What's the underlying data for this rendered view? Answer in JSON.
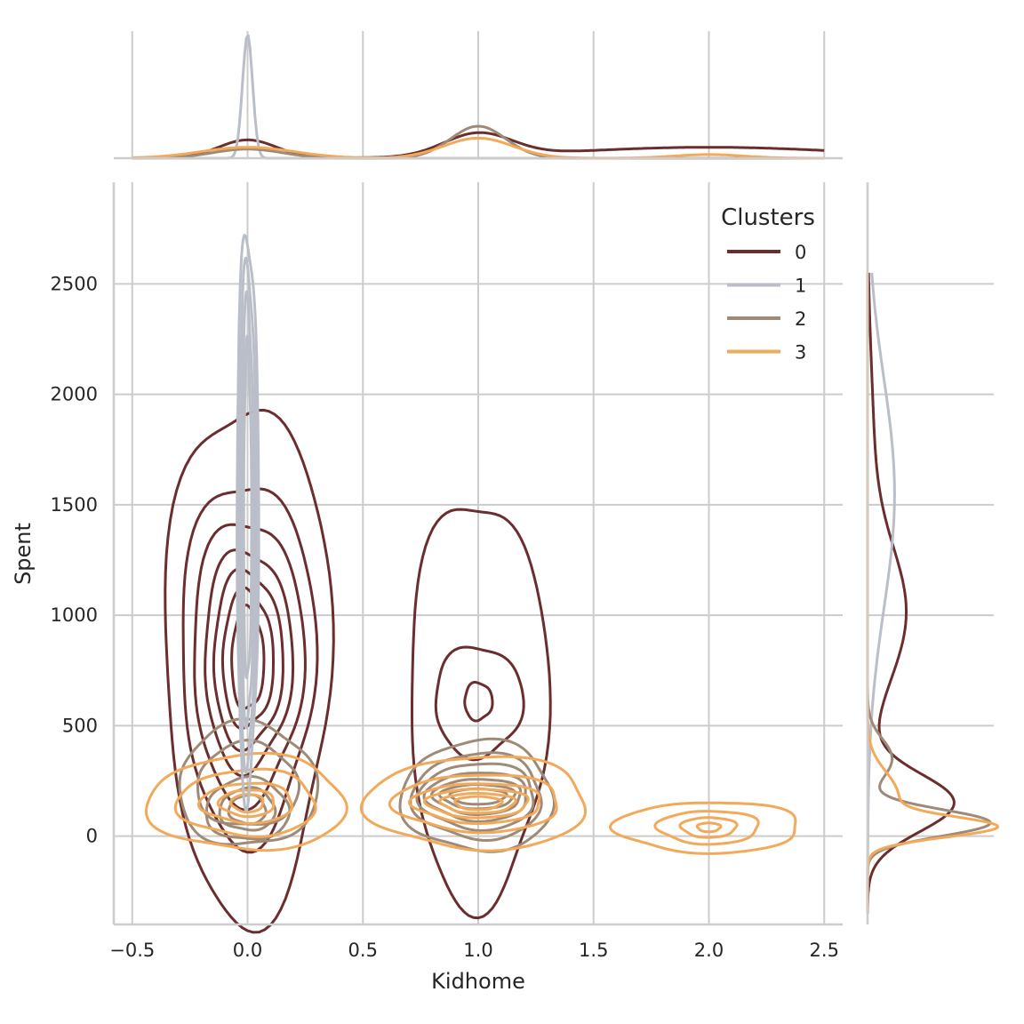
{
  "chart_data": {
    "type": "kde-jointplot",
    "xlabel": "Kidhome",
    "ylabel": "Spent",
    "xlim": [
      -0.58,
      2.58
    ],
    "ylim": [
      -400,
      2960
    ],
    "xticks": [
      -0.5,
      0.0,
      0.5,
      1.0,
      1.5,
      2.0,
      2.5
    ],
    "xtick_labels": [
      "−0.5",
      "0.0",
      "0.5",
      "1.0",
      "1.5",
      "2.0",
      "2.5"
    ],
    "yticks": [
      0,
      500,
      1000,
      1500,
      2000,
      2500
    ],
    "ytick_labels": [
      "0",
      "500",
      "1000",
      "1500",
      "2000",
      "2500"
    ],
    "grid": true,
    "legend": {
      "title": "Clusters",
      "placement": "top-right",
      "entries": [
        "0",
        "1",
        "2",
        "3"
      ]
    },
    "series": [
      {
        "name": "0",
        "color": "#6b2d2d",
        "blobs": [
          {
            "cx": 0.0,
            "cy": 800,
            "levels": [
              [
                0.36,
                1170
              ],
              [
                0.29,
                820
              ],
              [
                0.24,
                640
              ],
              [
                0.19,
                500
              ],
              [
                0.15,
                400
              ],
              [
                0.11,
                310
              ],
              [
                0.07,
                230
              ]
            ]
          },
          {
            "cx": 1.0,
            "cy": 610,
            "levels": [
              [
                0.3,
                920
              ],
              [
                0.19,
                250
              ],
              [
                0.06,
                85
              ]
            ]
          }
        ],
        "marg_x": [
          [
            0.0,
            0.125,
            0.02
          ],
          [
            1.0,
            0.148,
            0.025
          ],
          [
            2.0,
            0.6,
            0.012
          ]
        ],
        "marg_y": [
          [
            150,
            130,
            0.7
          ],
          [
            1000,
            300,
            0.3
          ],
          [
            1700,
            450,
            0.05
          ]
        ]
      },
      {
        "name": "1",
        "color": "#b9bec8",
        "blobs": [
          {
            "cx": 0.0,
            "cy": 1450,
            "levels": [
              [
                0.047,
                1270
              ],
              [
                0.037,
                1130
              ],
              [
                0.027,
                960
              ],
              [
                0.017,
                760
              ]
            ]
          }
        ],
        "marg_x": [
          [
            0.0,
            0.022,
            0.135
          ]
        ],
        "marg_y": [
          [
            1550,
            520,
            0.22
          ]
        ]
      },
      {
        "name": "2",
        "color": "#9e8a76",
        "blobs": [
          {
            "cx": 0.0,
            "cy": 230,
            "levels": [
              [
                0.3,
                280
              ],
              [
                0.22,
                190
              ]
            ]
          },
          {
            "cx": 0.0,
            "cy": 120,
            "levels": [
              [
                0.18,
                140
              ],
              [
                0.12,
                95
              ],
              [
                0.08,
                65
              ]
            ]
          },
          {
            "cx": 1.0,
            "cy": 180,
            "levels": [
              [
                0.33,
                250
              ],
              [
                0.28,
                195
              ],
              [
                0.25,
                150
              ],
              [
                0.22,
                110
              ],
              [
                0.19,
                80
              ],
              [
                0.16,
                55
              ],
              [
                0.12,
                35
              ]
            ]
          }
        ],
        "marg_x": [
          [
            0.0,
            0.15,
            0.01
          ],
          [
            1.0,
            0.12,
            0.035
          ]
        ],
        "marg_y": [
          [
            60,
            60,
            1.0
          ],
          [
            350,
            90,
            0.2
          ]
        ]
      },
      {
        "name": "3",
        "color": "#f2a95a",
        "blobs": [
          {
            "cx": 0.0,
            "cy": 150,
            "levels": [
              [
                0.43,
                215
              ],
              [
                0.3,
                150
              ],
              [
                0.2,
                90
              ],
              [
                0.12,
                60
              ],
              [
                0.07,
                40
              ]
            ]
          },
          {
            "cx": 1.0,
            "cy": 150,
            "levels": [
              [
                0.48,
                210
              ],
              [
                0.36,
                130
              ],
              [
                0.28,
                90
              ],
              [
                0.22,
                65
              ],
              [
                0.16,
                45
              ],
              [
                0.1,
                30
              ]
            ]
          },
          {
            "cx": 2.0,
            "cy": 40,
            "levels": [
              [
                0.4,
                115
              ],
              [
                0.22,
                75
              ],
              [
                0.12,
                45
              ],
              [
                0.05,
                20
              ]
            ]
          }
        ],
        "marg_x": [
          [
            0.0,
            0.2,
            0.012
          ],
          [
            1.0,
            0.15,
            0.022
          ],
          [
            2.0,
            0.15,
            0.004
          ]
        ],
        "marg_y": [
          [
            40,
            45,
            0.95
          ],
          [
            180,
            110,
            0.25
          ]
        ]
      }
    ]
  }
}
